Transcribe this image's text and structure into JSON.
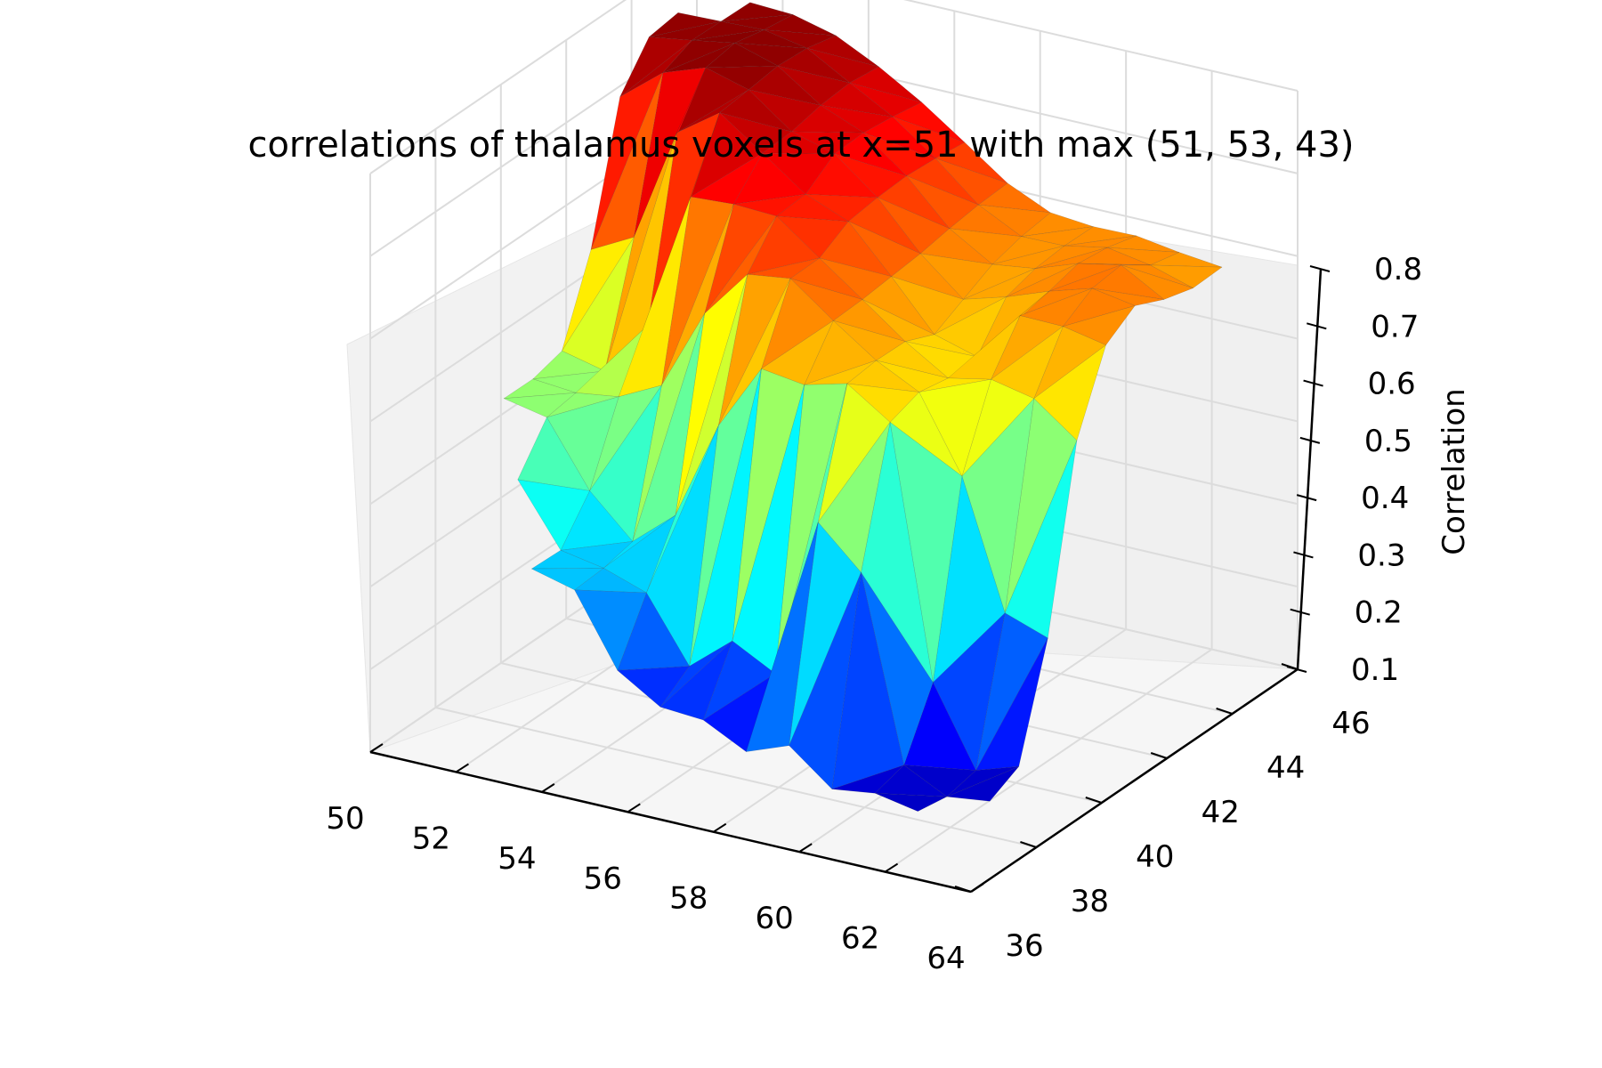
{
  "chart_data": {
    "type": "surface3d",
    "title": "correlations of thalamus voxels at x=51 with max (51, 53, 43)",
    "xlabel": "",
    "ylabel": "",
    "zlabel": "Correlation",
    "x_ticks": [
      "50",
      "52",
      "54",
      "56",
      "58",
      "60",
      "62",
      "64"
    ],
    "y_ticks": [
      "36",
      "38",
      "40",
      "42",
      "44",
      "46"
    ],
    "z_ticks": [
      "0.1",
      "0.2",
      "0.3",
      "0.4",
      "0.5",
      "0.6",
      "0.7",
      "0.8"
    ],
    "xlim": [
      50,
      64
    ],
    "ylim": [
      36,
      46
    ],
    "zlim": [
      0.1,
      0.8
    ],
    "colormap": "jet",
    "grid": true,
    "surface_points": [
      {
        "x": 52,
        "y": 44,
        "z": 0.79
      },
      {
        "x": 53,
        "y": 43,
        "z": 0.8
      },
      {
        "x": 54,
        "y": 42,
        "z": 0.78
      },
      {
        "x": 55,
        "y": 42,
        "z": 0.74
      },
      {
        "x": 56,
        "y": 41,
        "z": 0.7
      },
      {
        "x": 57,
        "y": 40,
        "z": 0.66
      },
      {
        "x": 58,
        "y": 40,
        "z": 0.62
      },
      {
        "x": 59,
        "y": 39,
        "z": 0.58
      },
      {
        "x": 60,
        "y": 41,
        "z": 0.55
      },
      {
        "x": 61,
        "y": 42,
        "z": 0.62
      },
      {
        "x": 62,
        "y": 43,
        "z": 0.64
      },
      {
        "x": 63,
        "y": 44,
        "z": 0.6
      },
      {
        "x": 52,
        "y": 40,
        "z": 0.46
      },
      {
        "x": 54,
        "y": 38,
        "z": 0.32
      },
      {
        "x": 56,
        "y": 37,
        "z": 0.2
      },
      {
        "x": 58,
        "y": 37,
        "z": 0.17
      },
      {
        "x": 60,
        "y": 36,
        "z": 0.12
      },
      {
        "x": 62,
        "y": 38,
        "z": 0.14
      }
    ]
  }
}
